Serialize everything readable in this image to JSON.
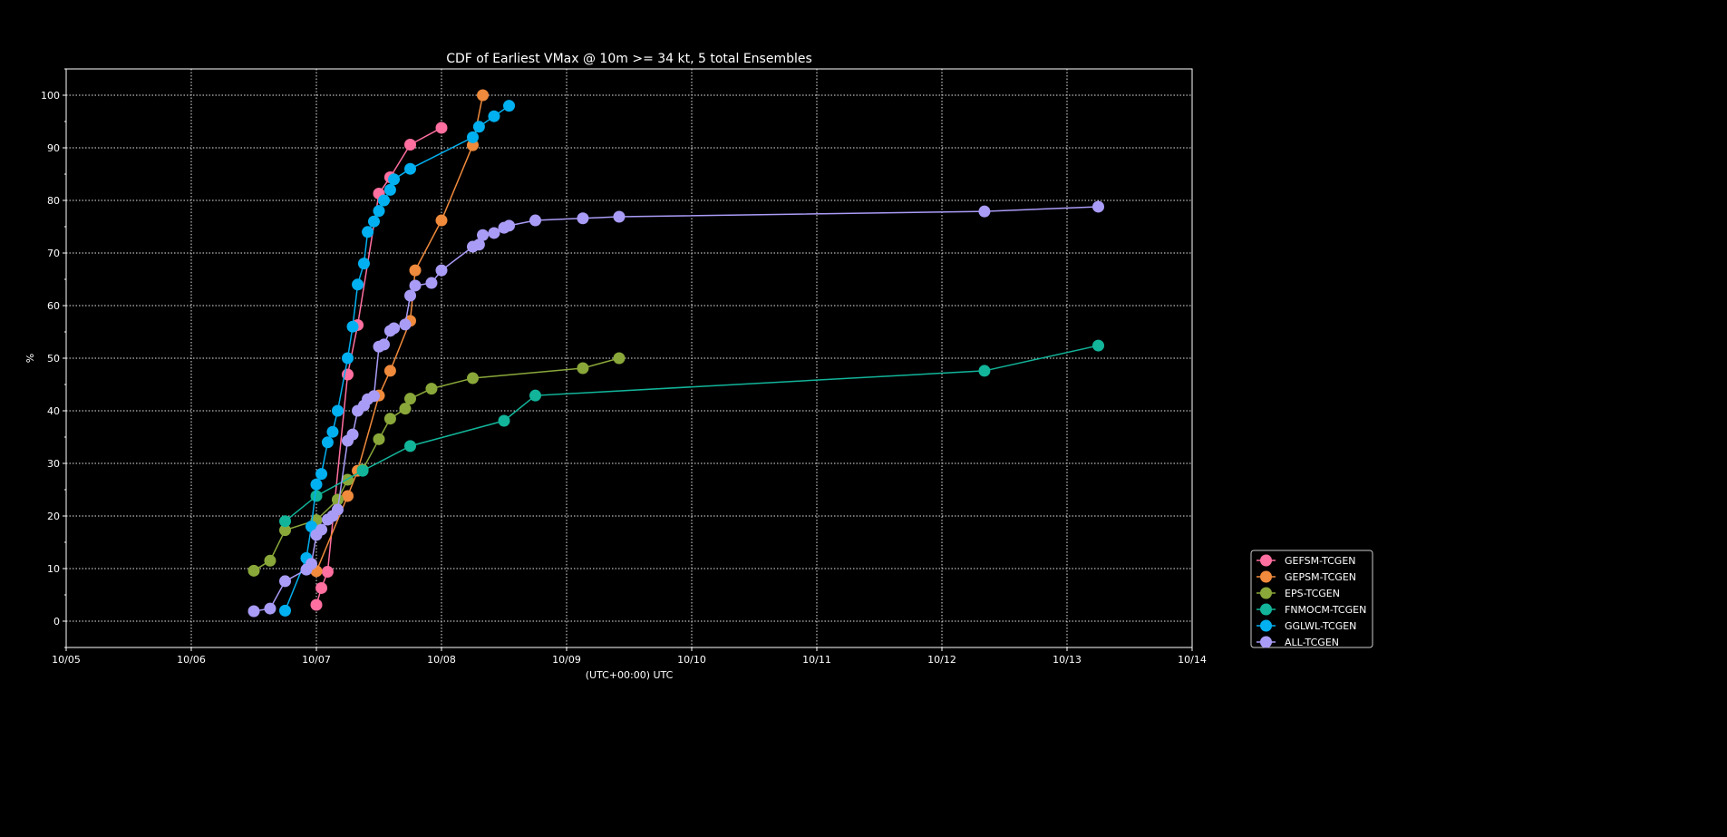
{
  "chart_data": {
    "type": "line",
    "title": "CDF of Earliest VMax @ 10m >= 34 kt, 5 total Ensembles",
    "xlabel": "(UTC+00:00) UTC",
    "ylabel": "%",
    "x_unit": "days since 10/05 00Z",
    "xlim": [
      0,
      9
    ],
    "ylim": [
      -5,
      105
    ],
    "x_tick_labels": [
      "10/05",
      "10/06",
      "10/07",
      "10/08",
      "10/09",
      "10/10",
      "10/11",
      "10/12",
      "10/13",
      "10/14"
    ],
    "y_ticks": [
      0,
      10,
      20,
      30,
      40,
      50,
      60,
      70,
      80,
      90,
      100
    ],
    "grid": true,
    "legend_position": "outside-bottom-right",
    "series": [
      {
        "name": "GEFSM-TCGEN",
        "color": "#ff6f9f",
        "points": [
          [
            2.0,
            3.1
          ],
          [
            2.04,
            6.3
          ],
          [
            2.09,
            9.4
          ],
          [
            2.25,
            46.9
          ],
          [
            2.33,
            56.3
          ],
          [
            2.5,
            81.3
          ],
          [
            2.59,
            84.4
          ],
          [
            2.75,
            90.6
          ],
          [
            3.0,
            93.8
          ]
        ]
      },
      {
        "name": "GEPSM-TCGEN",
        "color": "#f08a3c",
        "points": [
          [
            2.0,
            9.5
          ],
          [
            2.25,
            23.8
          ],
          [
            2.33,
            28.6
          ],
          [
            2.5,
            42.9
          ],
          [
            2.59,
            47.6
          ],
          [
            2.75,
            57.1
          ],
          [
            2.79,
            66.7
          ],
          [
            3.0,
            76.2
          ],
          [
            3.25,
            90.5
          ],
          [
            3.33,
            100
          ]
        ]
      },
      {
        "name": "EPS-TCGEN",
        "color": "#8aa83a",
        "points": [
          [
            1.5,
            9.6
          ],
          [
            1.63,
            11.5
          ],
          [
            1.75,
            17.3
          ],
          [
            2.0,
            19.2
          ],
          [
            2.17,
            23.1
          ],
          [
            2.25,
            26.9
          ],
          [
            2.37,
            28.8
          ],
          [
            2.5,
            34.6
          ],
          [
            2.59,
            38.5
          ],
          [
            2.71,
            40.4
          ],
          [
            2.75,
            42.3
          ],
          [
            2.92,
            44.2
          ],
          [
            3.25,
            46.2
          ],
          [
            4.13,
            48.1
          ],
          [
            4.42,
            50.0
          ]
        ]
      },
      {
        "name": "FNMOCM-TCGEN",
        "color": "#12b59a",
        "points": [
          [
            1.75,
            19.0
          ],
          [
            2.0,
            23.8
          ],
          [
            2.37,
            28.6
          ],
          [
            2.75,
            33.3
          ],
          [
            3.5,
            38.1
          ],
          [
            3.75,
            42.9
          ],
          [
            7.34,
            47.6
          ],
          [
            8.25,
            52.4
          ]
        ]
      },
      {
        "name": "GGLWL-TCGEN",
        "color": "#00b0f0",
        "points": [
          [
            1.75,
            2.0
          ],
          [
            1.92,
            12.0
          ],
          [
            1.96,
            18.0
          ],
          [
            2.0,
            26.0
          ],
          [
            2.04,
            28.0
          ],
          [
            2.09,
            34.0
          ],
          [
            2.13,
            36.0
          ],
          [
            2.17,
            40.0
          ],
          [
            2.25,
            50.0
          ],
          [
            2.29,
            56.0
          ],
          [
            2.33,
            64.0
          ],
          [
            2.38,
            68.0
          ],
          [
            2.41,
            74.0
          ],
          [
            2.46,
            76.0
          ],
          [
            2.5,
            78.0
          ],
          [
            2.54,
            80.0
          ],
          [
            2.59,
            82.0
          ],
          [
            2.62,
            84.0
          ],
          [
            2.75,
            86.0
          ],
          [
            3.25,
            92.0
          ],
          [
            3.3,
            94.0
          ],
          [
            3.42,
            96.0
          ],
          [
            3.54,
            98.0
          ]
        ]
      },
      {
        "name": "ALL-TCGEN",
        "color": "#a99cf7",
        "points": [
          [
            1.5,
            1.9
          ],
          [
            1.63,
            2.4
          ],
          [
            1.75,
            7.6
          ],
          [
            1.92,
            9.8
          ],
          [
            1.96,
            10.9
          ],
          [
            2.0,
            16.4
          ],
          [
            2.04,
            17.4
          ],
          [
            2.09,
            19.3
          ],
          [
            2.13,
            20.0
          ],
          [
            2.17,
            21.2
          ],
          [
            2.25,
            34.3
          ],
          [
            2.29,
            35.5
          ],
          [
            2.33,
            40.0
          ],
          [
            2.38,
            41.0
          ],
          [
            2.41,
            42.2
          ],
          [
            2.46,
            42.8
          ],
          [
            2.5,
            52.2
          ],
          [
            2.54,
            52.6
          ],
          [
            2.59,
            55.2
          ],
          [
            2.62,
            55.7
          ],
          [
            2.71,
            56.4
          ],
          [
            2.75,
            61.9
          ],
          [
            2.79,
            63.8
          ],
          [
            2.92,
            64.3
          ],
          [
            3.0,
            66.7
          ],
          [
            3.25,
            71.2
          ],
          [
            3.3,
            71.6
          ],
          [
            3.33,
            73.4
          ],
          [
            3.42,
            73.8
          ],
          [
            3.5,
            74.8
          ],
          [
            3.54,
            75.2
          ],
          [
            3.75,
            76.2
          ],
          [
            4.13,
            76.6
          ],
          [
            4.42,
            76.9
          ],
          [
            7.34,
            77.9
          ],
          [
            8.25,
            78.8
          ]
        ]
      }
    ]
  }
}
